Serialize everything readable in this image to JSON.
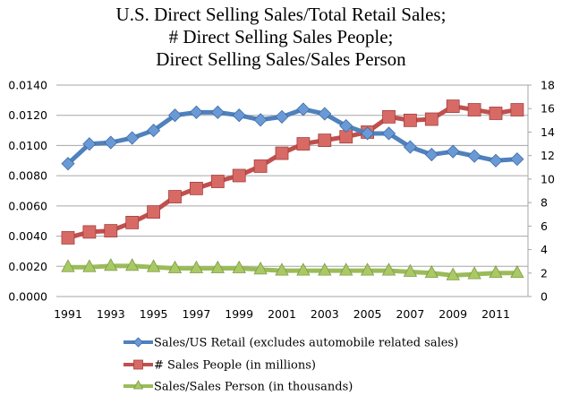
{
  "chart_data": {
    "type": "line",
    "title": [
      "U.S. Direct Selling Sales/Total Retail Sales;",
      "# Direct Selling Sales People;",
      "Direct Selling Sales/Sales Person"
    ],
    "xlabel": "",
    "ylabel_left": "",
    "ylabel_right": "",
    "x": [
      1991,
      1992,
      1993,
      1994,
      1995,
      1996,
      1997,
      1998,
      1999,
      2000,
      2001,
      2002,
      2003,
      2004,
      2005,
      2006,
      2007,
      2008,
      2009,
      2010,
      2011,
      2012
    ],
    "x_tick_labels": [
      "1991",
      "1993",
      "1995",
      "1997",
      "1999",
      "2001",
      "2003",
      "2005",
      "2007",
      "2009",
      "2011"
    ],
    "y_left": {
      "range": [
        0,
        0.014
      ],
      "ticks": [
        "0.0000",
        "0.0020",
        "0.0040",
        "0.0060",
        "0.0080",
        "0.0100",
        "0.0120",
        "0.0140"
      ]
    },
    "y_right": {
      "range": [
        0,
        18
      ],
      "ticks": [
        "0",
        "2",
        "4",
        "6",
        "8",
        "10",
        "12",
        "14",
        "16",
        "18"
      ]
    },
    "grid": true,
    "legend_position": "bottom",
    "series": [
      {
        "name": "Sales/US Retail (excludes automobile related sales)",
        "axis": "left",
        "marker": "diamond",
        "color": "#4F81BD",
        "values": [
          0.0088,
          0.0101,
          0.0102,
          0.0105,
          0.011,
          0.012,
          0.0122,
          0.0122,
          0.012,
          0.0117,
          0.0119,
          0.0124,
          0.0121,
          0.0113,
          0.0108,
          0.0108,
          0.0099,
          0.0094,
          0.0096,
          0.0093,
          0.009,
          0.0091
        ]
      },
      {
        "name": "# Sales People (in millions)",
        "axis": "right",
        "marker": "square",
        "color": "#C0504D",
        "values": [
          5.0,
          5.5,
          5.6,
          6.3,
          7.2,
          8.5,
          9.2,
          9.8,
          10.3,
          11.1,
          12.2,
          13.0,
          13.3,
          13.6,
          14.0,
          15.3,
          15.0,
          15.1,
          16.2,
          15.9,
          15.6,
          15.9
        ]
      },
      {
        "name": "Sales/Sales Person (in thousands)",
        "axis": "right",
        "marker": "triangle",
        "color": "#9BBB59",
        "values": [
          2.5,
          2.5,
          2.6,
          2.6,
          2.5,
          2.4,
          2.4,
          2.4,
          2.4,
          2.3,
          2.2,
          2.2,
          2.2,
          2.2,
          2.2,
          2.2,
          2.1,
          2.0,
          1.8,
          1.9,
          2.0,
          2.0
        ]
      }
    ]
  }
}
